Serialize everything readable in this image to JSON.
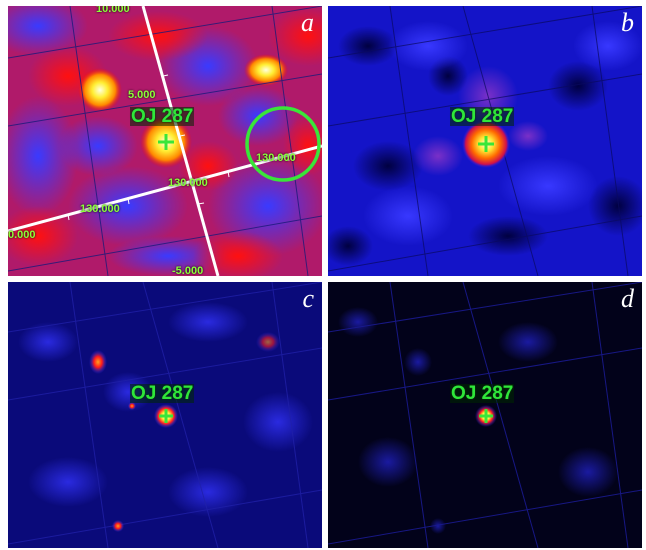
{
  "panels": [
    {
      "letter": "a",
      "source_label": "OJ 287",
      "colormap": "red-blue"
    },
    {
      "letter": "b",
      "source_label": "OJ 287",
      "colormap": "blue"
    },
    {
      "letter": "c",
      "source_label": "OJ 287",
      "colormap": "dark-blue"
    },
    {
      "letter": "d",
      "source_label": "OJ 287",
      "colormap": "black-blue"
    }
  ],
  "coordinate_labels": {
    "dec_top": "10.000",
    "dec_mid": "5.000",
    "dec_bottom": "-5.000",
    "ra_1": "130.000",
    "ra_2": "130.000",
    "ra_3": "130.000",
    "ra_left": "0.000"
  },
  "colors": {
    "marker": "#39e639",
    "label_text": "#2fe63a",
    "ring": "#39e639",
    "grid_axis": "#ffffff"
  }
}
